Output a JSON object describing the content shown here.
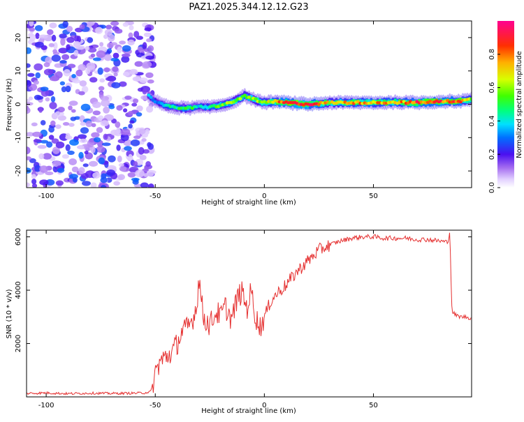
{
  "title": "PAZ1.2025.344.12.12.G23",
  "chart_data": [
    {
      "type": "heatmap",
      "name": "spectrogram",
      "xlabel": "Height of straight line (km)",
      "ylabel": "Frequency (Hz)",
      "xlim": [
        -109,
        95
      ],
      "ylim": [
        -25,
        25
      ],
      "xticks": [
        -100,
        -50,
        0,
        50
      ],
      "yticks": [
        -20,
        -10,
        0,
        10,
        20
      ],
      "colorbar": {
        "label": "Normalized spectral amplitude",
        "range": [
          0,
          1
        ],
        "ticks": [
          "0.0",
          "0.2",
          "0.4",
          "0.6",
          "0.8"
        ],
        "colormap": [
          "#ffffff",
          "#e2d0ff",
          "#b080f0",
          "#7a2be8",
          "#2020ff",
          "#0090ff",
          "#00e0ff",
          "#00ff90",
          "#40ff00",
          "#c8ff00",
          "#ffe000",
          "#ff9000",
          "#ff3000",
          "#ff0040",
          "#ff0090"
        ]
      },
      "ridge": {
        "x": [
          -53,
          -50,
          -45,
          -40,
          -35,
          -30,
          -25,
          -20,
          -15,
          -12,
          -9,
          -6,
          -3,
          0,
          5,
          10,
          20,
          30,
          40,
          50,
          60,
          70,
          80,
          90,
          95
        ],
        "freq": [
          2.5,
          1,
          -0.5,
          -1,
          -1.2,
          -0.8,
          -0.8,
          -0.3,
          0.5,
          1.5,
          2.5,
          1.8,
          1,
          0.5,
          0.8,
          0.5,
          0,
          0.5,
          0.5,
          0.5,
          0.6,
          0.5,
          0.8,
          1,
          1.5
        ],
        "amplitude": [
          0.35,
          0.3,
          0.4,
          0.45,
          0.55,
          0.4,
          0.45,
          0.55,
          0.6,
          0.55,
          0.6,
          0.55,
          0.65,
          0.6,
          0.75,
          0.85,
          0.9,
          0.65,
          0.75,
          0.75,
          0.7,
          0.85,
          0.85,
          0.8,
          0.6
        ]
      },
      "noise_region": {
        "x": [
          -109,
          -51
        ],
        "freq": [
          -25,
          25
        ],
        "amplitude_range": [
          0.05,
          0.3
        ]
      }
    },
    {
      "type": "line",
      "name": "snr",
      "xlabel": "Height of straight line (km)",
      "ylabel": "SNR (10 * v/v)",
      "xlim": [
        -109,
        95
      ],
      "ylim": [
        0,
        6250
      ],
      "xticks": [
        -100,
        -50,
        0,
        50
      ],
      "yticks": [
        2000,
        4000,
        6000
      ],
      "color": "#e53030",
      "x": [
        -109,
        -100,
        -90,
        -80,
        -70,
        -60,
        -55,
        -52,
        -50,
        -48,
        -45,
        -42,
        -40,
        -38,
        -35,
        -33,
        -31,
        -30,
        -28,
        -25,
        -22,
        -20,
        -18,
        -15,
        -12,
        -10,
        -8,
        -6,
        -4,
        -2,
        0,
        3,
        6,
        10,
        15,
        20,
        25,
        30,
        35,
        40,
        45,
        50,
        55,
        60,
        65,
        70,
        75,
        80,
        84,
        85,
        86,
        88,
        90,
        92,
        95
      ],
      "y": [
        130,
        150,
        120,
        140,
        130,
        140,
        150,
        200,
        900,
        1300,
        1500,
        1700,
        2000,
        2400,
        2600,
        2900,
        3400,
        4500,
        3000,
        2700,
        3200,
        3000,
        3400,
        2900,
        3800,
        3900,
        3300,
        4000,
        3000,
        2600,
        3000,
        3600,
        3900,
        4200,
        4700,
        5100,
        5500,
        5700,
        5850,
        5950,
        6000,
        6000,
        5950,
        5950,
        5950,
        5900,
        5900,
        5850,
        5800,
        6200,
        3200,
        3050,
        3000,
        3000,
        2950
      ]
    }
  ]
}
